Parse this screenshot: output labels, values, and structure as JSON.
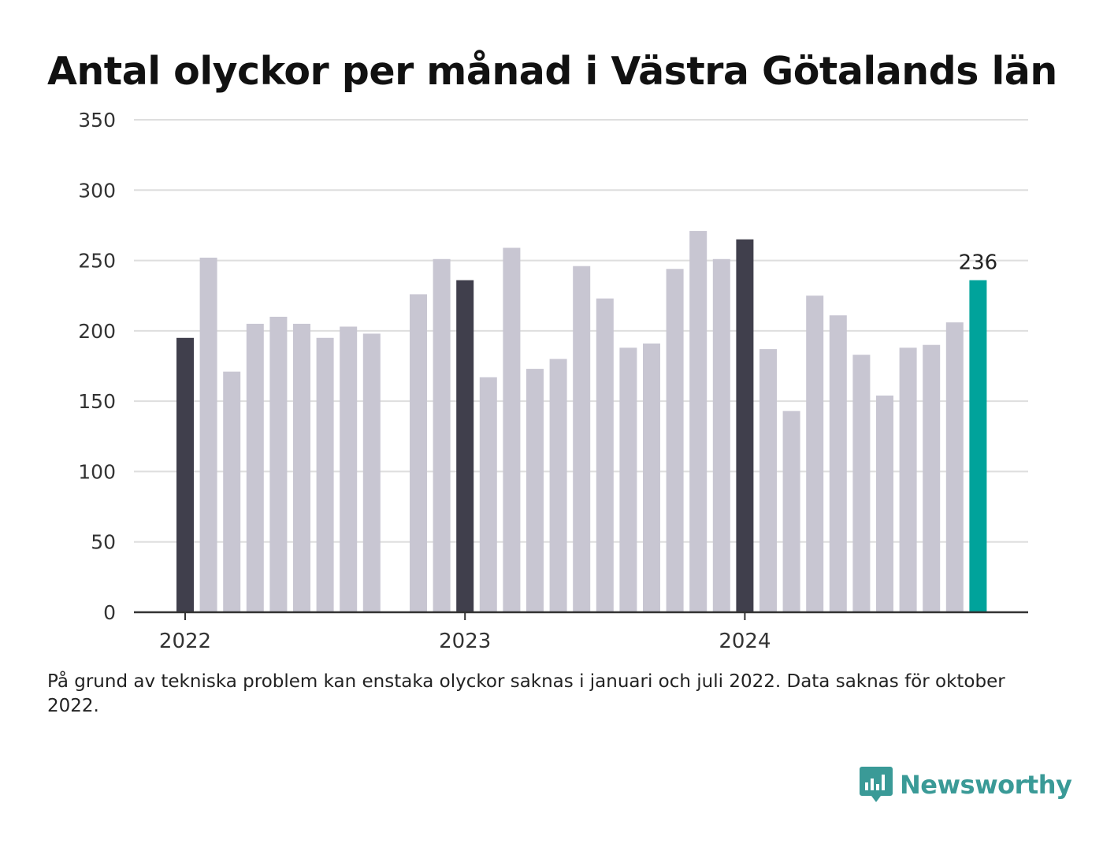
{
  "title": "Antal olyckor per månad i Västra Götalands län",
  "note": "På grund av tekniska problem kan enstaka olyckor saknas i januari och juli 2022. Data saknas för oktober 2022.",
  "brand": {
    "name": "Newsworthy",
    "icon": "newsworthy-logo-icon",
    "color": "#3a9a97"
  },
  "colors": {
    "default_bar": "#c8c6d2",
    "january_bar": "#403f4c",
    "latest_bar": "#00a39b",
    "grid": "#dedede",
    "axis": "#333333"
  },
  "chart_data": {
    "type": "bar",
    "x_axis_labels": [
      "2022",
      "2023",
      "2024"
    ],
    "categories": [
      "2022-01",
      "2022-02",
      "2022-03",
      "2022-04",
      "2022-05",
      "2022-06",
      "2022-07",
      "2022-08",
      "2022-09",
      "2022-10",
      "2022-11",
      "2022-12",
      "2023-01",
      "2023-02",
      "2023-03",
      "2023-04",
      "2023-05",
      "2023-06",
      "2023-07",
      "2023-08",
      "2023-09",
      "2023-10",
      "2023-11",
      "2023-12",
      "2024-01",
      "2024-02",
      "2024-03",
      "2024-04",
      "2024-05",
      "2024-06",
      "2024-07",
      "2024-08",
      "2024-09",
      "2024-10",
      "2024-11",
      "2024-12"
    ],
    "values": [
      195,
      252,
      171,
      205,
      210,
      205,
      195,
      203,
      198,
      null,
      226,
      251,
      236,
      167,
      259,
      173,
      180,
      246,
      223,
      188,
      191,
      244,
      271,
      251,
      265,
      187,
      143,
      225,
      211,
      183,
      154,
      188,
      190,
      206,
      236,
      null
    ],
    "highlight_last_label": "236",
    "ylim": [
      0,
      350
    ],
    "y_ticks": [
      0,
      50,
      100,
      150,
      200,
      250,
      300,
      350
    ],
    "grid": true
  }
}
